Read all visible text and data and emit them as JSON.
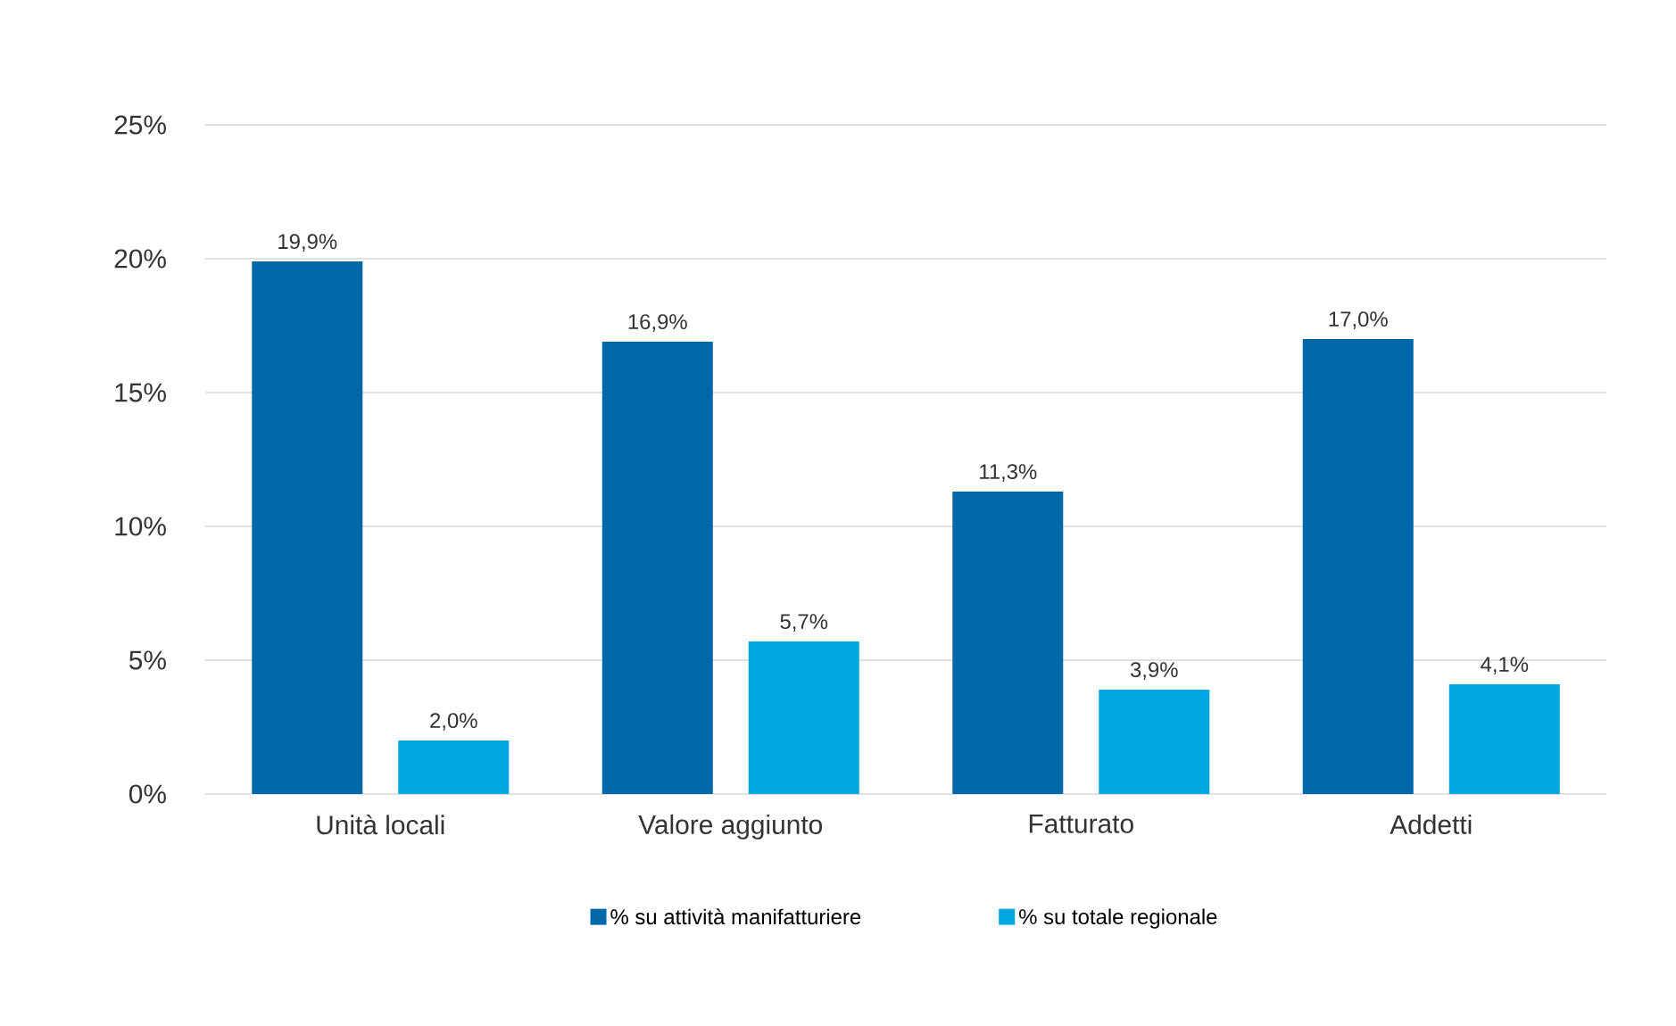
{
  "chart_data": {
    "type": "bar",
    "categories": [
      "Unità locali",
      "Valore aggiunto",
      "Fatturato",
      "Addetti"
    ],
    "series": [
      {
        "name": "% su attività manifatturiere",
        "color": "#0068a9",
        "values": [
          19.9,
          16.9,
          11.3,
          17.0
        ],
        "value_labels": [
          "19,9%",
          "16,9%",
          "11,3%",
          "17,0%"
        ]
      },
      {
        "name": "% su totale regionale",
        "color": "#00a6e0",
        "values": [
          2.0,
          5.7,
          3.9,
          4.1
        ],
        "value_labels": [
          "2,0%",
          "5,7%",
          "3,9%",
          "4,1%"
        ]
      }
    ],
    "ylim": [
      0,
      25
    ],
    "yticks": [
      {
        "value": 0,
        "label": "0%"
      },
      {
        "value": 5,
        "label": "5%"
      },
      {
        "value": 10,
        "label": "10%"
      },
      {
        "value": 15,
        "label": "15%"
      },
      {
        "value": 20,
        "label": "20%"
      },
      {
        "value": 25,
        "label": "25%"
      }
    ],
    "grid": "y",
    "legend": "bottom"
  }
}
